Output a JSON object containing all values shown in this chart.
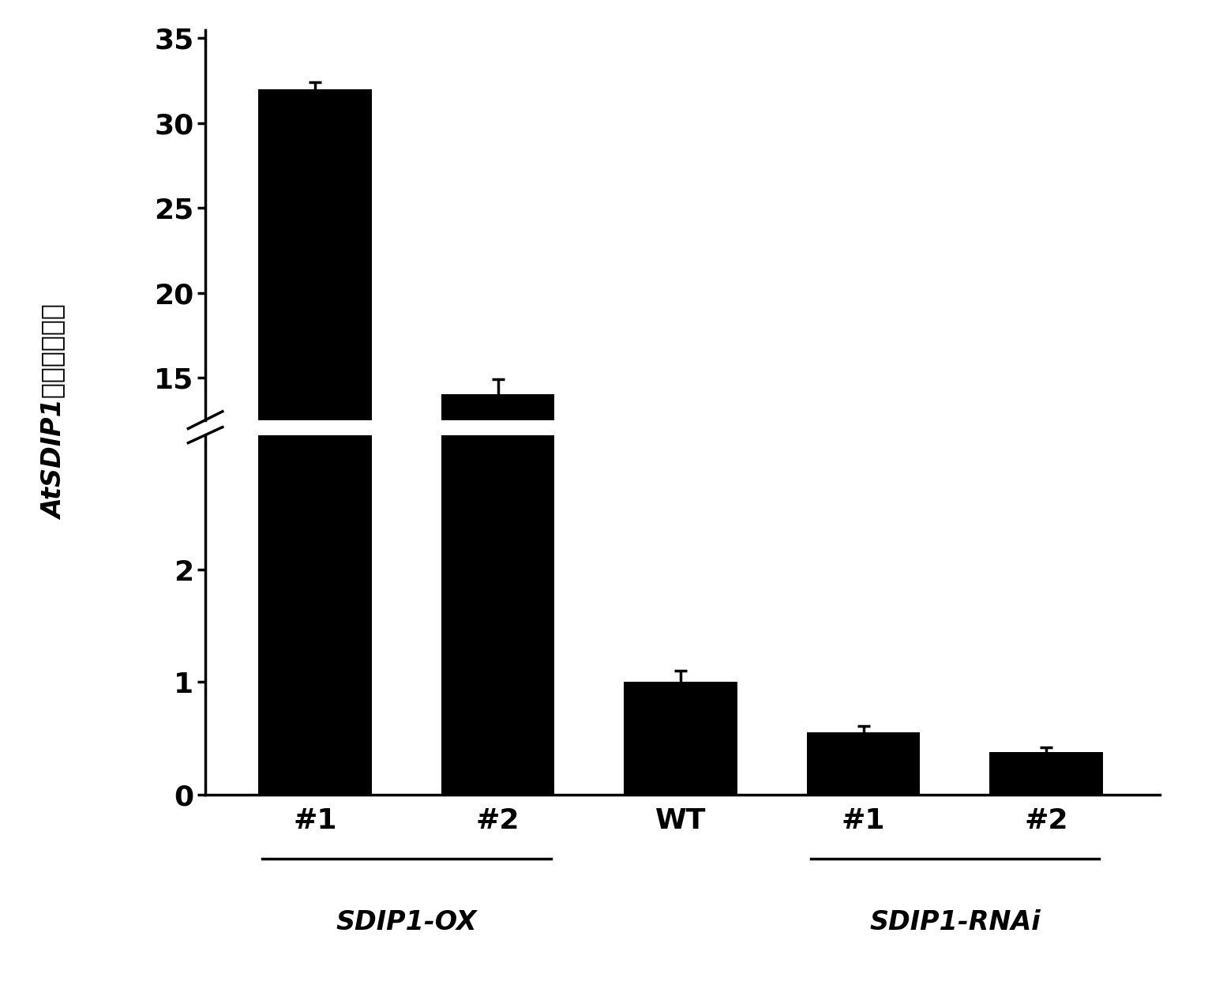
{
  "categories": [
    "#1",
    "#2",
    "WT",
    "#1",
    "#2"
  ],
  "values": [
    32.0,
    14.0,
    1.0,
    0.55,
    0.38
  ],
  "errors": [
    0.4,
    0.9,
    0.1,
    0.06,
    0.04
  ],
  "bar_color": "#000000",
  "bar_width": 0.62,
  "ylabel_top": "量",
  "ylabel": "AtSDIP1的相对表达量",
  "background_color": "#ffffff",
  "ylim_lower": [
    0,
    3.2
  ],
  "ylim_upper": [
    12.5,
    35.5
  ],
  "yticks_lower": [
    0,
    1,
    2
  ],
  "yticks_upper": [
    15,
    20,
    25,
    30,
    35
  ],
  "tick_fontsize": 26,
  "label_fontsize": 24,
  "group_tick_fontsize": 26
}
